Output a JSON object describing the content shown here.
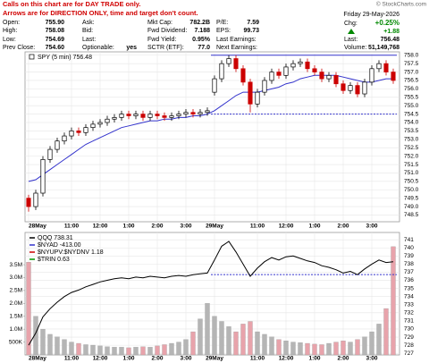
{
  "notes": [
    "Calls on this chart are for DAY TRADE only.",
    "Arrows are for DIRECTION ONLY, time and target don't count."
  ],
  "copyright": "© StockCharts.com",
  "quote_columns": [
    [
      {
        "label": "Open:",
        "value": "755.90"
      },
      {
        "label": "High:",
        "value": "758.08"
      },
      {
        "label": "Low:",
        "value": "754.69"
      },
      {
        "label": "Prev Close:",
        "value": "754.60"
      }
    ],
    [
      {
        "label": "Ask:"
      },
      {
        "label": "Bid:"
      },
      {
        "label": "Last:"
      },
      {
        "label": "Optionable:",
        "value": "yes"
      }
    ],
    [
      {
        "label": "Mkt Cap:",
        "value": "782.2B"
      },
      {
        "label": "Fwd Dividend:",
        "value": "7.188"
      },
      {
        "label": "Fwd Yield:",
        "value": "0.95%"
      },
      {
        "label": "SCTR (ETF):",
        "value": "77.0"
      }
    ],
    [
      {
        "label": "P/E:",
        "value": "7.59"
      },
      {
        "label": "EPS:",
        "value": "99.73"
      },
      {
        "label": "Last Earnings:"
      },
      {
        "label": "Next Earnings:"
      }
    ]
  ],
  "summary": {
    "date": "Friday 29-May-2026",
    "chg_label": "Chg:",
    "chg_pct": "+0.25%",
    "chg": "+1.88",
    "last_label": "Last:",
    "last": "756.48",
    "volume_label": "Volume:",
    "volume": "51,149,768"
  },
  "chart_data": [
    {
      "type": "candlestick",
      "legend": "SPY (5 min) 756.48",
      "categories": [
        "28May",
        null,
        null,
        null,
        null,
        null,
        "11:00",
        null,
        null,
        null,
        "12:00",
        null,
        null,
        null,
        "1:00",
        null,
        null,
        null,
        "2:00",
        null,
        null,
        null,
        "3:00",
        null,
        null,
        null,
        "29May",
        null,
        null,
        null,
        null,
        null,
        "11:00",
        null,
        null,
        null,
        "12:00",
        null,
        null,
        null,
        "1:00",
        null,
        null,
        null,
        "2:00",
        null,
        null,
        null,
        "3:00",
        null,
        null,
        null
      ],
      "open": [
        749.5,
        749.0,
        749.8,
        751.8,
        752.4,
        752.9,
        753.2,
        753.5,
        753.4,
        753.7,
        753.9,
        754.0,
        754.2,
        754.3,
        754.5,
        754.4,
        754.5,
        754.3,
        754.5,
        754.4,
        754.3,
        754.4,
        754.5,
        754.6,
        754.5,
        754.6,
        755.8,
        756.6,
        757.5,
        757.8,
        757.2,
        756.4,
        755.1,
        755.8,
        756.5,
        757.0,
        756.8,
        757.3,
        757.5,
        757.6,
        757.2,
        757.0,
        756.6,
        756.8,
        756.3,
        755.9,
        756.2,
        755.7,
        756.4,
        757.2,
        757.5,
        757.0
      ],
      "high": [
        749.7,
        750.0,
        752.0,
        752.6,
        753.1,
        753.4,
        753.7,
        753.7,
        753.9,
        754.1,
        754.2,
        754.4,
        754.5,
        754.7,
        754.7,
        754.7,
        754.7,
        754.7,
        754.7,
        754.6,
        754.6,
        754.7,
        754.8,
        754.8,
        754.8,
        754.9,
        756.8,
        757.7,
        758.0,
        758.0,
        757.4,
        756.6,
        756.0,
        756.7,
        757.2,
        757.2,
        757.5,
        757.7,
        757.8,
        757.8,
        757.4,
        757.2,
        757.0,
        757.0,
        756.5,
        756.4,
        756.4,
        756.6,
        757.4,
        757.7,
        757.7,
        757.2
      ],
      "low": [
        748.7,
        748.8,
        749.6,
        751.6,
        752.2,
        752.7,
        753.0,
        753.2,
        753.2,
        753.5,
        753.7,
        753.8,
        754.0,
        754.1,
        754.2,
        754.2,
        754.1,
        754.1,
        754.2,
        754.1,
        754.1,
        754.2,
        754.3,
        754.3,
        754.3,
        754.4,
        755.6,
        756.4,
        757.3,
        757.0,
        756.2,
        754.6,
        754.9,
        755.6,
        756.3,
        756.6,
        756.6,
        757.1,
        757.3,
        757.0,
        756.8,
        756.4,
        756.4,
        756.1,
        755.7,
        755.7,
        755.5,
        755.5,
        756.2,
        757.0,
        756.8,
        756.3
      ],
      "close": [
        749.0,
        749.8,
        751.8,
        752.4,
        752.9,
        753.2,
        753.5,
        753.4,
        753.7,
        753.9,
        754.0,
        754.2,
        754.3,
        754.5,
        754.4,
        754.5,
        754.3,
        754.5,
        754.4,
        754.3,
        754.4,
        754.5,
        754.6,
        754.5,
        754.6,
        754.7,
        756.6,
        757.5,
        757.8,
        757.2,
        756.4,
        755.1,
        755.8,
        756.5,
        757.0,
        756.8,
        757.3,
        757.5,
        757.6,
        757.2,
        757.0,
        756.6,
        756.8,
        756.3,
        755.9,
        756.2,
        755.7,
        756.4,
        757.2,
        757.5,
        757.0,
        756.5
      ],
      "ma": [
        750.5,
        750.6,
        750.9,
        751.2,
        751.5,
        751.8,
        752.1,
        752.4,
        752.7,
        752.9,
        753.1,
        753.3,
        753.5,
        753.7,
        753.8,
        753.9,
        754.0,
        754.1,
        754.1,
        754.2,
        754.2,
        754.3,
        754.3,
        754.4,
        754.4,
        754.5,
        754.7,
        755.0,
        755.3,
        755.6,
        755.8,
        755.8,
        755.8,
        755.9,
        756.0,
        756.1,
        756.3,
        756.4,
        756.6,
        756.7,
        756.8,
        756.8,
        756.8,
        756.8,
        756.7,
        756.6,
        756.5,
        756.4,
        756.4,
        756.5,
        756.6,
        756.6
      ],
      "up_color": "#000000",
      "down_color": "#cc0000",
      "ma_color": "#3333cc",
      "levels": [
        758.0,
        754.5
      ],
      "level_color": "#3333cc",
      "ylim": [
        748.1,
        758.2
      ],
      "yticks": [
        748.5,
        {
          "value": 749,
          "label": "749.0"
        },
        749.5,
        {
          "value": 750,
          "label": "750.0"
        },
        750.5,
        {
          "value": 751,
          "label": "751.0"
        },
        751.5,
        {
          "value": 752,
          "label": "752.0"
        },
        752.5,
        {
          "value": 753,
          "label": "753.0"
        },
        753.5,
        {
          "value": 754,
          "label": "754.0"
        },
        754.5,
        {
          "value": 755,
          "label": "755.0"
        },
        755.5,
        {
          "value": 756,
          "label": "756.0"
        },
        756.5,
        {
          "value": 757,
          "label": "757.0"
        },
        757.5,
        {
          "value": 758,
          "label": "758.0"
        }
      ],
      "grid": true
    },
    {
      "type": "line",
      "legend": [
        "QQQ 738.31",
        "$NYAD -413.00",
        "$NYUPV:$NYDNV 1.18",
        "$TRIN 0.63"
      ],
      "legend_colors": [
        "#000000",
        "#3333cc",
        "#cc0000",
        "#009900"
      ],
      "series": [
        {
          "name": "QQQ",
          "color": "#000000",
          "values": [
            728.0,
            729.5,
            731.5,
            732.5,
            733.3,
            734.0,
            734.5,
            734.8,
            735.2,
            735.5,
            735.8,
            736.0,
            736.2,
            736.3,
            736.2,
            736.4,
            736.3,
            736.5,
            736.4,
            736.3,
            736.5,
            736.6,
            736.5,
            736.7,
            736.8,
            736.9,
            738.5,
            740.2,
            740.8,
            739.5,
            738.0,
            736.5,
            737.5,
            738.3,
            738.8,
            738.5,
            738.9,
            739.0,
            738.7,
            738.4,
            738.2,
            737.8,
            737.6,
            737.3,
            736.9,
            737.1,
            736.7,
            737.4,
            738.0,
            738.5,
            738.2,
            738.3
          ]
        }
      ],
      "levels": [
        736.7
      ],
      "level_color": "#3333cc",
      "ylim": [
        726.8,
        741.9
      ],
      "yticks": [
        727,
        728,
        729,
        730,
        731,
        732,
        733,
        734,
        735,
        736,
        737,
        738,
        739,
        740,
        741
      ],
      "volume": {
        "values": [
          3600000,
          1500000,
          1000000,
          800000,
          700000,
          600000,
          500000,
          450000,
          400000,
          380000,
          350000,
          320000,
          300000,
          300000,
          280000,
          300000,
          320000,
          300000,
          350000,
          400000,
          450000,
          500000,
          600000,
          900000,
          1400000,
          2000000,
          1500000,
          1300000,
          1100000,
          900000,
          1200000,
          1300000,
          900000,
          800000,
          700000,
          600000,
          550000,
          500000,
          480000,
          450000,
          420000,
          400000,
          450000,
          500000,
          550000,
          500000,
          600000,
          700000,
          900000,
          1200000,
          1800000,
          4200000
        ],
        "up_color": "#b5b5b5",
        "down_color": "#e8a3ab",
        "ylim": [
          0,
          4750000
        ],
        "yticks": [
          {
            "value": 500000,
            "label": "500K"
          },
          {
            "value": 1000000,
            "label": "1.0M"
          },
          {
            "value": 1500000,
            "label": "1.5M"
          },
          {
            "value": 2000000,
            "label": "2.0M"
          },
          {
            "value": 2500000,
            "label": "2.5M"
          },
          {
            "value": 3000000,
            "label": "3.0M"
          },
          {
            "value": 3500000,
            "label": "3.5M"
          }
        ]
      },
      "grid": true
    }
  ]
}
